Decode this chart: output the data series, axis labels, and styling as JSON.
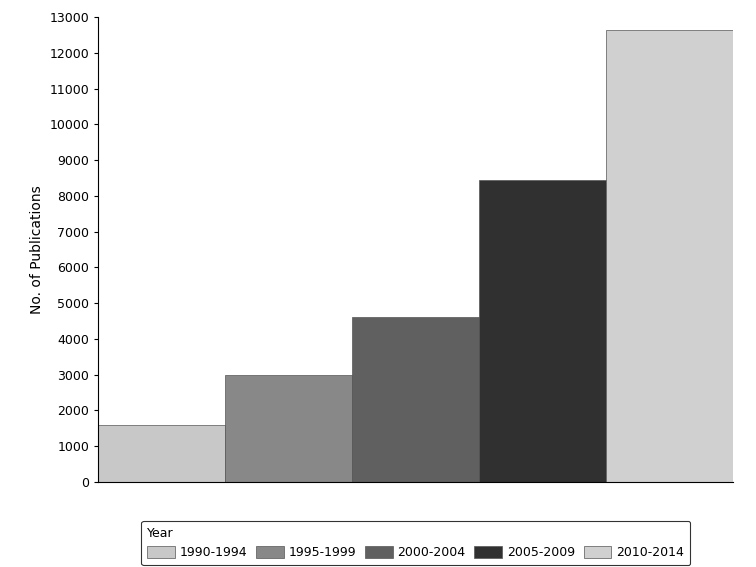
{
  "categories": [
    "1990-1994",
    "1995-1999",
    "2000-2004",
    "2005-2009",
    "2010-2014"
  ],
  "values": [
    1600,
    3000,
    4600,
    8450,
    12650
  ],
  "bar_colors": [
    "#c8c8c8",
    "#888888",
    "#606060",
    "#303030",
    "#d0d0d0"
  ],
  "ylabel": "No. of Publications",
  "ylim": [
    0,
    13000
  ],
  "yticks": [
    0,
    1000,
    2000,
    3000,
    4000,
    5000,
    6000,
    7000,
    8000,
    9000,
    10000,
    11000,
    12000,
    13000
  ],
  "background_color": "#ffffff",
  "legend_label": "Year",
  "edge_color": "#555555",
  "figsize": [
    7.56,
    5.67
  ],
  "dpi": 100
}
